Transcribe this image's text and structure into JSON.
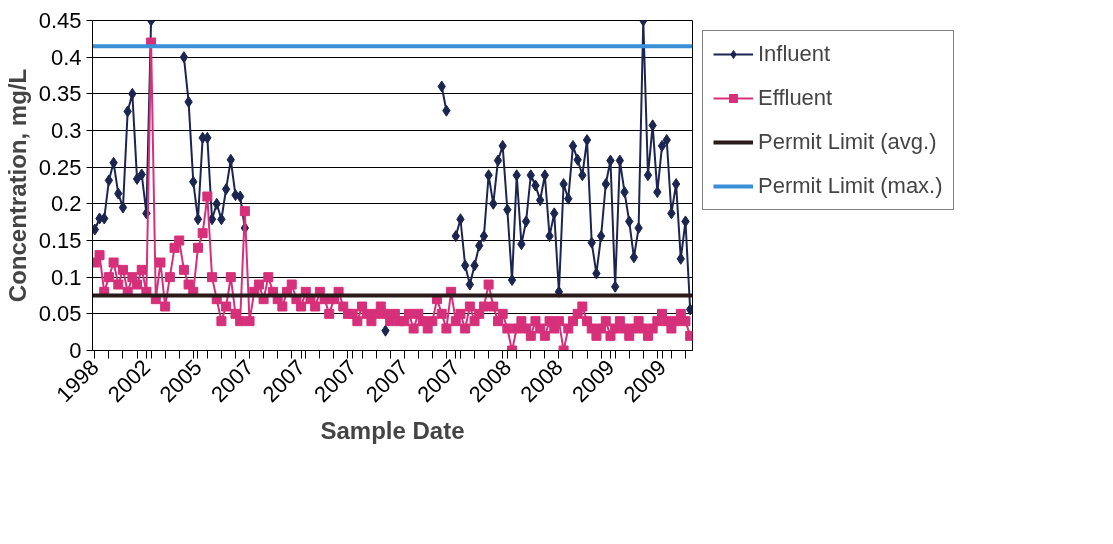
{
  "chart_data": {
    "type": "line",
    "xlabel": "Sample Date",
    "ylabel": "Concentration, mg/L",
    "categories": [
      "1998",
      null,
      null,
      null,
      null,
      null,
      null,
      null,
      null,
      null,
      null,
      "2002",
      null,
      null,
      null,
      null,
      null,
      null,
      null,
      null,
      null,
      null,
      "2005",
      null,
      null,
      null,
      null,
      null,
      null,
      null,
      null,
      null,
      null,
      "2007",
      null,
      null,
      null,
      null,
      null,
      null,
      null,
      null,
      null,
      null,
      "2007",
      null,
      null,
      null,
      null,
      null,
      null,
      null,
      null,
      null,
      null,
      "2007",
      null,
      null,
      null,
      null,
      null,
      null,
      null,
      null,
      null,
      null,
      "2007",
      null,
      null,
      null,
      null,
      null,
      null,
      null,
      null,
      null,
      null,
      "2007",
      null,
      null,
      null,
      null,
      null,
      null,
      null,
      null,
      null,
      null,
      "2008",
      null,
      null,
      null,
      null,
      null,
      null,
      null,
      null,
      null,
      null,
      "2008",
      null,
      null,
      null,
      null,
      null,
      null,
      null,
      null,
      null,
      null,
      "2009",
      null,
      null,
      null,
      null,
      null,
      null,
      null,
      null,
      null,
      null,
      "2009",
      null,
      null,
      null,
      null,
      null,
      null
    ],
    "series": [
      {
        "name": "Influent",
        "color": "#1c2550",
        "marker": "diamond",
        "values": [
          0.165,
          0.18,
          0.18,
          0.232,
          0.256,
          0.214,
          0.195,
          0.326,
          0.35,
          0.234,
          0.24,
          0.187,
          0.45,
          null,
          null,
          null,
          null,
          null,
          null,
          0.4,
          0.339,
          0.23,
          0.179,
          0.29,
          0.29,
          0.179,
          0.2,
          0.179,
          0.22,
          0.26,
          0.212,
          0.21,
          0.167,
          null,
          null,
          null,
          null,
          null,
          null,
          null,
          null,
          null,
          null,
          null,
          null,
          null,
          null,
          null,
          null,
          null,
          null,
          null,
          null,
          null,
          null,
          null,
          null,
          null,
          null,
          null,
          null,
          null,
          0.027,
          null,
          null,
          null,
          null,
          null,
          null,
          null,
          null,
          null,
          null,
          null,
          0.36,
          0.327,
          null,
          0.156,
          0.179,
          0.116,
          0.09,
          0.116,
          0.143,
          0.156,
          0.239,
          0.2,
          0.259,
          0.279,
          0.192,
          0.096,
          0.239,
          0.145,
          0.176,
          0.239,
          0.225,
          0.205,
          0.239,
          0.156,
          0.187,
          0.08,
          0.227,
          0.207,
          0.279,
          0.26,
          0.239,
          0.287,
          0.147,
          0.105,
          0.156,
          0.227,
          0.259,
          0.087,
          0.259,
          0.216,
          0.176,
          0.127,
          0.167,
          0.45,
          0.239,
          0.307,
          0.216,
          0.279,
          0.287,
          0.187,
          0.227,
          0.125,
          0.176,
          0.056
        ]
      },
      {
        "name": "Effluent",
        "color": "#d6307a",
        "marker": "square",
        "values": [
          0.12,
          0.13,
          0.08,
          0.1,
          0.12,
          0.09,
          0.11,
          0.08,
          0.1,
          0.09,
          0.11,
          0.08,
          0.42,
          0.07,
          0.12,
          0.06,
          0.1,
          0.14,
          0.15,
          0.11,
          0.09,
          0.08,
          0.14,
          0.16,
          0.21,
          0.1,
          0.07,
          0.04,
          0.06,
          0.1,
          0.05,
          0.04,
          0.19,
          0.04,
          0.08,
          0.09,
          0.07,
          0.1,
          0.08,
          0.07,
          0.06,
          0.08,
          0.09,
          0.07,
          0.06,
          0.08,
          0.07,
          0.06,
          0.08,
          0.07,
          0.05,
          0.07,
          0.08,
          0.06,
          0.05,
          0.05,
          0.04,
          0.06,
          0.05,
          0.04,
          0.05,
          0.06,
          0.05,
          0.04,
          0.05,
          0.04,
          0.04,
          0.05,
          0.03,
          0.05,
          0.04,
          0.03,
          0.04,
          0.07,
          0.05,
          0.03,
          0.08,
          0.04,
          0.05,
          0.03,
          0.06,
          0.04,
          0.05,
          0.06,
          0.09,
          0.06,
          0.04,
          0.05,
          0.03,
          0.0,
          0.03,
          0.04,
          0.03,
          0.02,
          0.04,
          0.03,
          0.02,
          0.04,
          0.03,
          0.04,
          0.0,
          0.03,
          0.04,
          0.05,
          0.06,
          0.04,
          0.03,
          0.02,
          0.03,
          0.04,
          0.02,
          0.03,
          0.04,
          0.03,
          0.02,
          0.03,
          0.04,
          0.03,
          0.02,
          0.03,
          0.04,
          0.05,
          0.04,
          0.03,
          0.04,
          0.05,
          0.04,
          0.02
        ]
      }
    ],
    "ref_lines": [
      {
        "axis": "y",
        "value": 0.075,
        "label": "Permit Limit (avg.)",
        "color": "#2a1a1a"
      },
      {
        "axis": "y",
        "value": 0.415,
        "label": "Permit Limit (max.)",
        "color": "#3a8fd6"
      }
    ],
    "ylim": [
      0,
      0.45
    ],
    "yticks": [
      0,
      0.05,
      0.1,
      0.15,
      0.2,
      0.25,
      0.3,
      0.35,
      0.4,
      0.45
    ],
    "grid": "y",
    "legend": "right"
  }
}
